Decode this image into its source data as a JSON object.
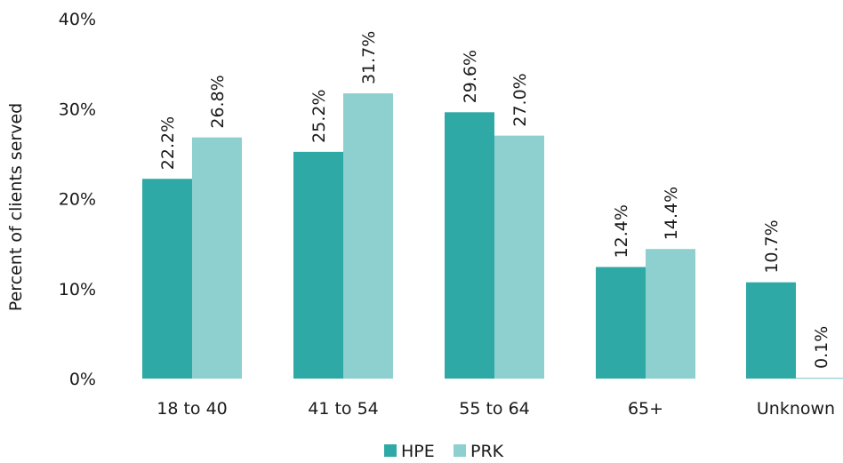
{
  "chart_data": {
    "type": "bar",
    "title": "",
    "xlabel": "",
    "ylabel": "Percent of clients served",
    "ylim": [
      0,
      40
    ],
    "yticks": [
      "0%",
      "10%",
      "20%",
      "30%",
      "40%"
    ],
    "categories": [
      "18 to 40",
      "41 to 54",
      "55 to 64",
      "65+",
      "Unknown"
    ],
    "series": [
      {
        "name": "HPE",
        "color": "#2fa9a6",
        "values": [
          22.2,
          25.2,
          29.6,
          12.4,
          10.7
        ],
        "labels": [
          "22.2%",
          "25.2%",
          "29.6%",
          "12.4%",
          "10.7%"
        ]
      },
      {
        "name": "PRK",
        "color": "#8dd0cf",
        "values": [
          26.8,
          31.7,
          27.0,
          14.4,
          0.1
        ],
        "labels": [
          "26.8%",
          "31.7%",
          "27.0%",
          "14.4%",
          "0.1%"
        ]
      }
    ],
    "legend": "bottom-center",
    "grid": false
  }
}
